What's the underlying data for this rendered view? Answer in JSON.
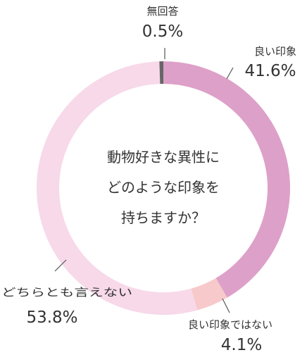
{
  "chart_data": {
    "type": "pie",
    "center_lines": [
      "動物好きな異性に",
      "どのような印象を",
      "持ちますか？"
    ],
    "slices": [
      {
        "label": "良い印象",
        "value": 41.6,
        "value_label": "41.6%",
        "color": "#dda0c8"
      },
      {
        "label": "良い印象ではない",
        "value": 4.1,
        "value_label": "4.1%",
        "color": "#f7c9ca"
      },
      {
        "label": "どちらとも言えない",
        "value": 53.8,
        "value_label": "53.8%",
        "color": "#f7d9e9"
      },
      {
        "label": "無回答",
        "value": 0.5,
        "value_label": "0.5%",
        "color": "#666666"
      }
    ]
  }
}
